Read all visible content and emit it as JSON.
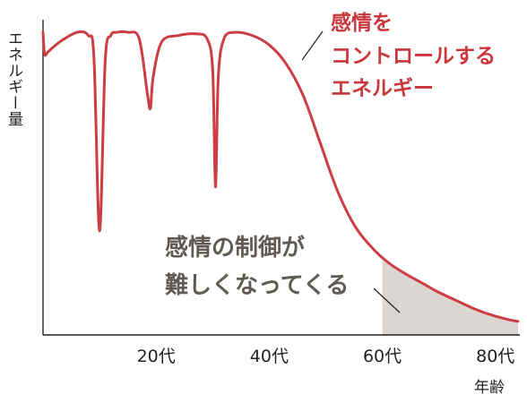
{
  "chart_data": {
    "type": "line",
    "ylabel": "エネルギー量",
    "xlabel": "年齢",
    "x_ticks": [
      {
        "value": 20,
        "label": "20代"
      },
      {
        "value": 40,
        "label": "40代"
      },
      {
        "value": 60,
        "label": "60代"
      },
      {
        "value": 80,
        "label": "80代"
      }
    ],
    "xlim": [
      0,
      84
    ],
    "ylim": [
      0,
      100
    ],
    "grid": false,
    "series": [
      {
        "name": "感情をコントロールするエネルギー",
        "color": "#cc3d44",
        "x": [
          0,
          0.3,
          1,
          3,
          6,
          8,
          9,
          10,
          11,
          12,
          13,
          15,
          17,
          18.5,
          19,
          19.5,
          21,
          24,
          27,
          29,
          30,
          30.5,
          31,
          32,
          34,
          37,
          40,
          43,
          46,
          49,
          52,
          55,
          58,
          61,
          64,
          67,
          70,
          73,
          76,
          79,
          82,
          84
        ],
        "y": [
          96,
          89,
          90,
          93,
          96,
          95,
          88,
          33,
          87,
          95,
          96,
          96,
          94,
          76,
          72,
          82,
          93,
          95,
          95.5,
          94,
          84,
          47,
          82,
          94,
          96,
          95,
          92,
          86,
          76,
          61,
          46,
          35,
          28,
          23,
          19.5,
          16.5,
          13.5,
          11,
          8.5,
          6.5,
          5,
          4.3
        ]
      }
    ],
    "shaded_region": {
      "x_from": 60,
      "x_to": 84,
      "color": "#dcd6d3"
    },
    "annotations": [
      {
        "lines": [
          "感情を",
          "コントロールする",
          "エネルギー"
        ],
        "color": "#c8373c"
      },
      {
        "lines": [
          "感情の制御が",
          "難しくなってくる"
        ],
        "color": "#5f5b54"
      }
    ]
  }
}
